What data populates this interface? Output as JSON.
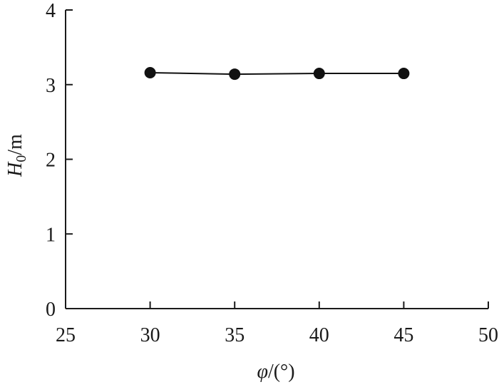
{
  "chart_data": {
    "type": "line",
    "title": "",
    "xlabel": {
      "var": "φ",
      "unit": "/(°)"
    },
    "ylabel": {
      "var": "H",
      "sub": "0",
      "unit": "/m"
    },
    "xlim": [
      25,
      50
    ],
    "ylim": [
      0,
      4
    ],
    "x_ticks": [
      25,
      30,
      35,
      40,
      45,
      50
    ],
    "y_ticks": [
      0,
      1,
      2,
      3,
      4
    ],
    "grid": false,
    "series": [
      {
        "x": [
          30,
          35,
          40,
          45
        ],
        "y": [
          3.16,
          3.14,
          3.15,
          3.15
        ]
      }
    ],
    "colors": {
      "series": "#111111",
      "axis": "#1a1a1a"
    }
  }
}
